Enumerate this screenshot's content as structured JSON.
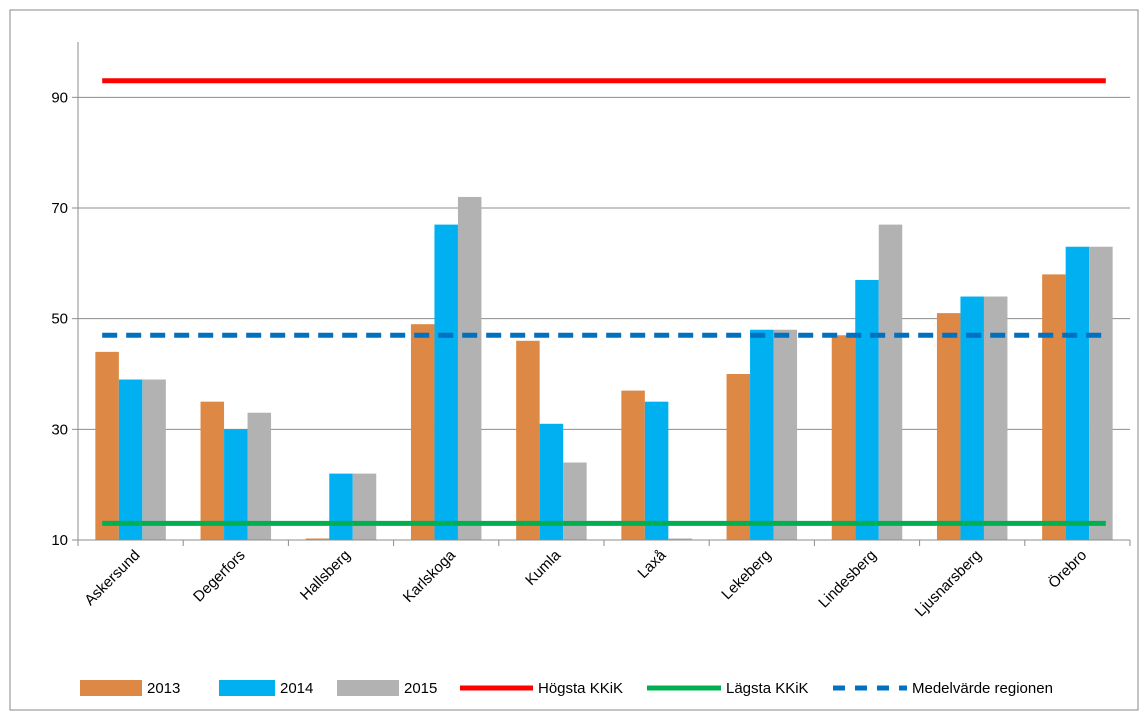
{
  "chart_data": {
    "type": "bar",
    "title": "",
    "categories": [
      "Askersund",
      "Degerfors",
      "Hallsberg",
      "Karlskoga",
      "Kumla",
      "Laxå",
      "Lekeberg",
      "Lindesberg",
      "Ljusnarsberg",
      "Örebro"
    ],
    "series": [
      {
        "name": "2013",
        "kind": "bar",
        "color": "#dd8844",
        "values": [
          44,
          35,
          10,
          49,
          46,
          37,
          40,
          47,
          51,
          58
        ]
      },
      {
        "name": "2014",
        "kind": "bar",
        "color": "#00b0f0",
        "values": [
          39,
          30,
          22,
          67,
          31,
          35,
          48,
          57,
          54,
          63
        ]
      },
      {
        "name": "2015",
        "kind": "bar",
        "color": "#b2b2b2",
        "values": [
          39,
          33,
          22,
          72,
          24,
          10,
          48,
          67,
          54,
          63
        ]
      },
      {
        "name": "Högsta KKiK",
        "kind": "line",
        "style": "solid",
        "color": "#ff0000",
        "value": 93
      },
      {
        "name": "Lägsta KKiK",
        "kind": "line",
        "style": "solid",
        "color": "#00b050",
        "value": 13
      },
      {
        "name": "Medelvärde regionen",
        "kind": "line",
        "style": "dashed",
        "color": "#0070c0",
        "value": 47
      }
    ],
    "yticks": [
      10,
      30,
      50,
      70,
      90
    ],
    "ylim": [
      10,
      100
    ],
    "xlabel": "",
    "ylabel": "",
    "grid": true,
    "legend": "bottom"
  }
}
